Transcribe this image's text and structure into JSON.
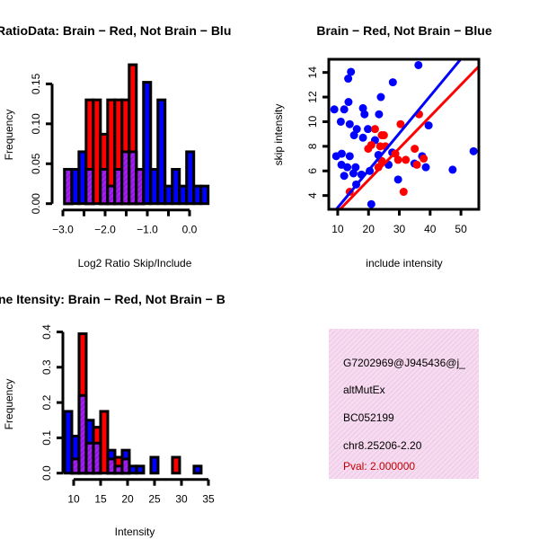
{
  "colors": {
    "blue": "#0000ff",
    "red": "#ff0000",
    "purple": "#a020f0",
    "textbox_bg": "#f9d9f3",
    "pval": "#c00000"
  },
  "chart_data": [
    {
      "type": "bar",
      "subtype": "overlaid-histogram",
      "title": "RatioData: Brain − Red, Not Brain − Blu",
      "xlabel": "Log2 Ratio Skip/Include",
      "ylabel": "Frequency",
      "xlim": [
        -3.0,
        0.4
      ],
      "ylim": [
        0,
        0.15
      ],
      "xticks": [
        -3.0,
        -2.5,
        -2.0,
        -1.5,
        -1.0,
        -0.5,
        0.0
      ],
      "xtick_labels": [
        "-3.0",
        "",
        "-2.0",
        "",
        "-1.0",
        "",
        "0.0"
      ],
      "yticks": [
        0,
        0.05,
        0.1,
        0.15
      ],
      "ytick_labels": [
        "0.00",
        "0.05",
        "0.10",
        "0.15"
      ],
      "bin_start": -2.96,
      "bin_width": 0.17,
      "series": [
        {
          "name": "Not Brain",
          "color": "blue",
          "values": [
            0.043,
            0.043,
            0.065,
            0.043,
            0,
            0.043,
            0.022,
            0.043,
            0.065,
            0.065,
            0.043,
            0.152,
            0.043,
            0.13,
            0.022,
            0.043,
            0.022,
            0.065,
            0.022,
            0.022
          ]
        },
        {
          "name": "Brain",
          "color": "red",
          "values": [
            0.043,
            0,
            0,
            0.13,
            0.13,
            0.087,
            0.13,
            0.13,
            0.13,
            0.174,
            0.043,
            0,
            0,
            0,
            0,
            0,
            0,
            0,
            0,
            0
          ]
        }
      ]
    },
    {
      "type": "scatter",
      "title": "Brain − Red, Not Brain − Blue",
      "xlabel": "include intensity",
      "ylabel": "skip intensity",
      "xlim": [
        7.1,
        55.8
      ],
      "ylim": [
        2.88,
        15.07
      ],
      "xticks": [
        10,
        20,
        30,
        40,
        50
      ],
      "xtick_labels": [
        "10",
        "20",
        "30",
        "40",
        "50"
      ],
      "yticks": [
        4,
        6,
        8,
        10,
        12,
        14
      ],
      "ytick_labels": [
        "4",
        "6",
        "8",
        "10",
        "12",
        "14"
      ],
      "series": [
        {
          "name": "Not Brain",
          "color": "blue",
          "points": [
            [
              36.2,
              14.6
            ],
            [
              14.3,
              14.05
            ],
            [
              13.4,
              13.5
            ],
            [
              27.9,
              13.2
            ],
            [
              24.0,
              12.0
            ],
            [
              13.5,
              11.6
            ],
            [
              8.9,
              11.0
            ],
            [
              12.1,
              11.0
            ],
            [
              18.2,
              11.1
            ],
            [
              18.7,
              10.6
            ],
            [
              23.4,
              10.6
            ],
            [
              11.0,
              10.0
            ],
            [
              13.9,
              9.8
            ],
            [
              16.2,
              9.4
            ],
            [
              19.8,
              9.4
            ],
            [
              15.3,
              8.9
            ],
            [
              18.2,
              8.7
            ],
            [
              22.1,
              8.5
            ],
            [
              39.5,
              9.7
            ],
            [
              54.1,
              7.6
            ],
            [
              27.7,
              7.5
            ],
            [
              23.2,
              7.3
            ],
            [
              9.5,
              7.2
            ],
            [
              11.3,
              7.4
            ],
            [
              13.9,
              7.2
            ],
            [
              37.4,
              7.2
            ],
            [
              34.9,
              6.6
            ],
            [
              11.2,
              6.5
            ],
            [
              13.1,
              6.3
            ],
            [
              15.8,
              6.3
            ],
            [
              15.1,
              5.8
            ],
            [
              17.7,
              5.7
            ],
            [
              12.1,
              5.6
            ],
            [
              20.4,
              6.0
            ],
            [
              26.5,
              6.5
            ],
            [
              38.6,
              6.3
            ],
            [
              47.3,
              6.1
            ],
            [
              29.6,
              5.3
            ],
            [
              16.0,
              4.9
            ],
            [
              20.9,
              3.3
            ]
          ],
          "fit": {
            "intercept": 0.0,
            "slope": 0.302
          }
        },
        {
          "name": "Brain",
          "color": "red",
          "points": [
            [
              36.4,
              10.6
            ],
            [
              30.4,
              9.8
            ],
            [
              22.1,
              9.4
            ],
            [
              24.3,
              8.9
            ],
            [
              25.0,
              8.9
            ],
            [
              19.9,
              7.8
            ],
            [
              20.9,
              8.1
            ],
            [
              23.8,
              8.0
            ],
            [
              25.5,
              8.0
            ],
            [
              28.7,
              7.4
            ],
            [
              29.6,
              6.9
            ],
            [
              32.1,
              6.9
            ],
            [
              35.0,
              7.8
            ],
            [
              35.7,
              6.5
            ],
            [
              37.9,
              7.0
            ],
            [
              24.3,
              6.8
            ],
            [
              23.2,
              6.3
            ],
            [
              31.4,
              4.3
            ],
            [
              13.9,
              4.3
            ]
          ],
          "fit": {
            "intercept": 0.1,
            "slope": 0.258
          }
        }
      ]
    },
    {
      "type": "bar",
      "subtype": "overlaid-histogram",
      "title": "ne Itensity: Brain − Red, Not Brain − B",
      "xlabel": "Intensity",
      "ylabel": "Frequency",
      "xlim": [
        8.3,
        35
      ],
      "ylim": [
        0,
        0.4
      ],
      "xticks": [
        10,
        15,
        20,
        25,
        30,
        35
      ],
      "xtick_labels": [
        "10",
        "15",
        "20",
        "25",
        "30",
        "35"
      ],
      "yticks": [
        0,
        0.1,
        0.2,
        0.3,
        0.4
      ],
      "ytick_labels": [
        "0.0",
        "0.1",
        "0.2",
        "0.3",
        "0.4"
      ],
      "bin_start": 8.33,
      "bin_width": 1.333,
      "series": [
        {
          "name": "Not Brain",
          "color": "blue",
          "values": [
            0.175,
            0.105,
            0.22,
            0.15,
            0.085,
            0,
            0.065,
            0.02,
            0.065,
            0.02,
            0.02,
            0,
            0.045,
            0,
            0,
            0,
            0,
            0,
            0.02
          ]
        },
        {
          "name": "Brain",
          "color": "red",
          "values": [
            0,
            0.04,
            0.395,
            0.085,
            0.13,
            0.175,
            0.04,
            0.045,
            0.04,
            0,
            0,
            0,
            0,
            0,
            0,
            0.045,
            0,
            0,
            0
          ]
        }
      ]
    }
  ],
  "info_box": {
    "id": "G7202969@J945436@j_",
    "type": "altMutEx",
    "accession": "BC052199",
    "location": "chr8.25206-2.20",
    "pval": "Pval: 2.000000"
  }
}
